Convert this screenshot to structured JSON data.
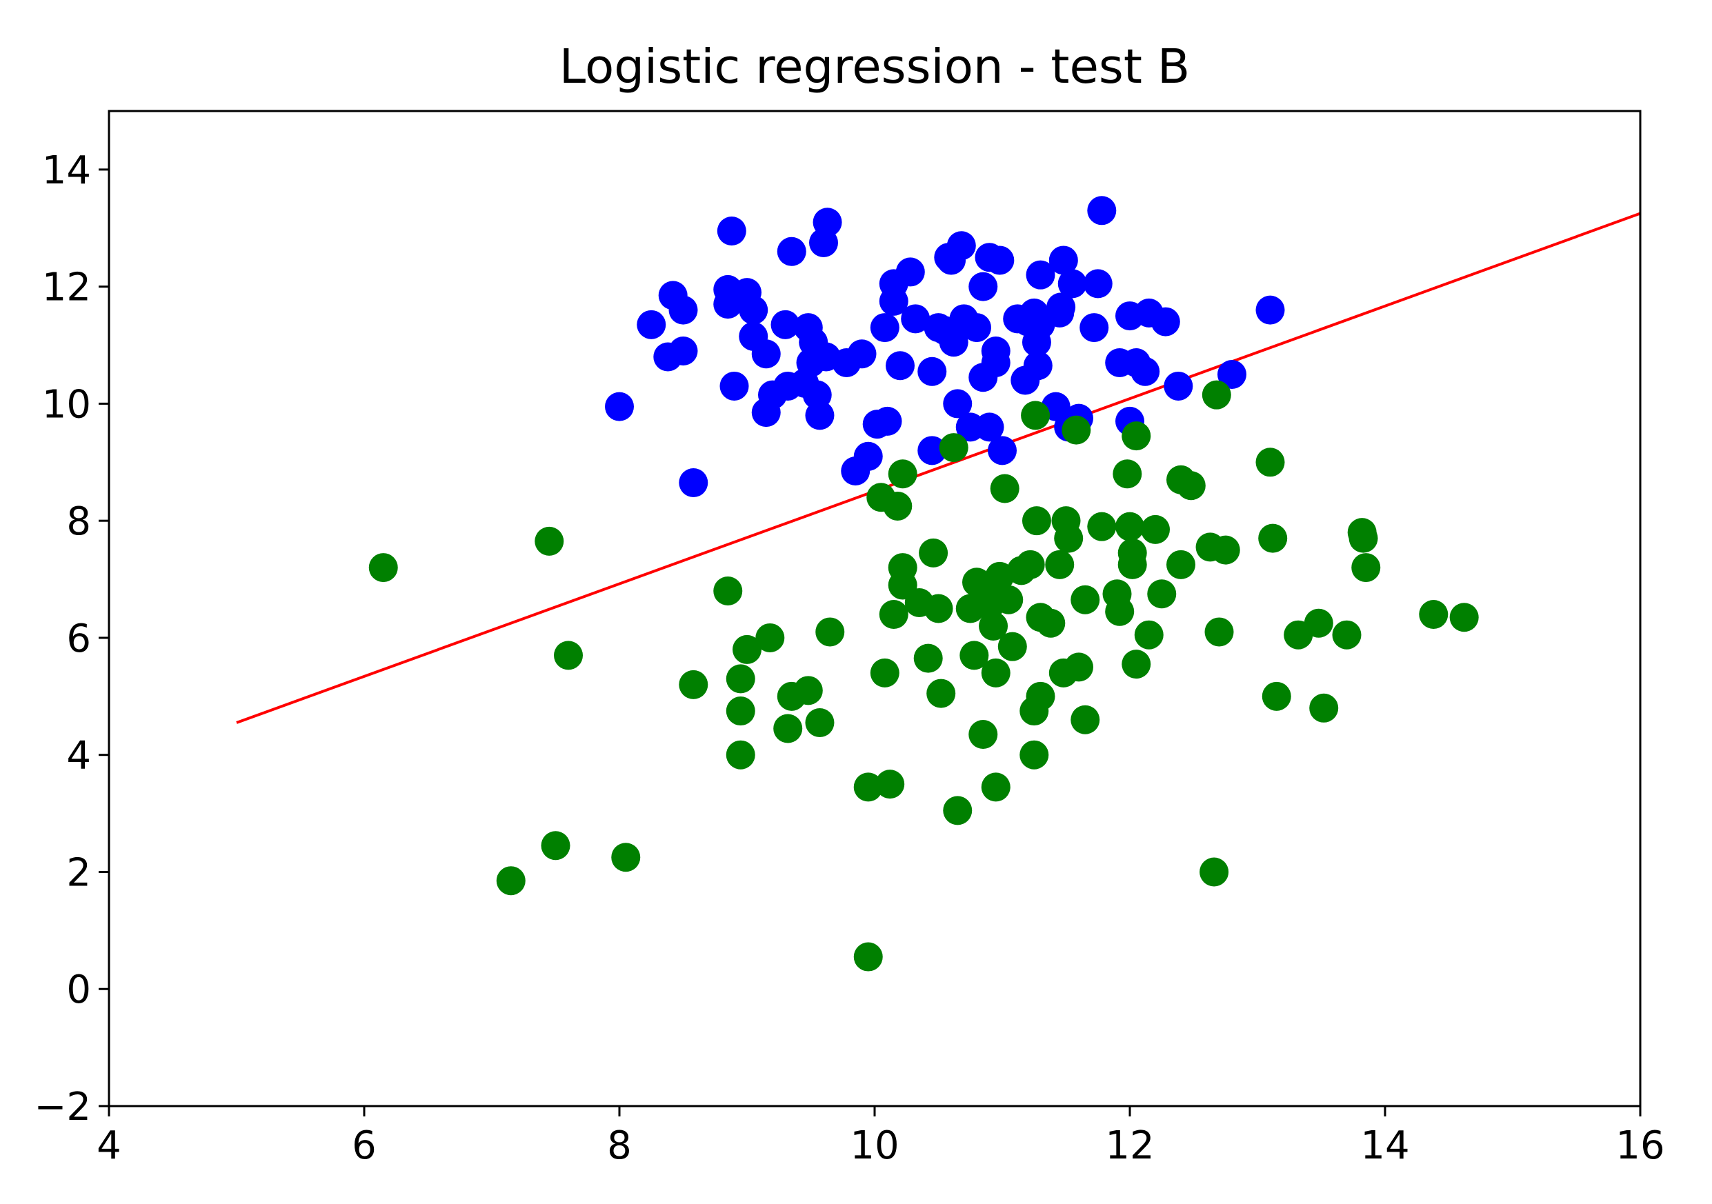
{
  "chart_data": {
    "type": "scatter",
    "title": "Logistic regression - test B",
    "xlabel": "",
    "ylabel": "",
    "xlim": [
      4,
      16
    ],
    "ylim": [
      -2,
      15
    ],
    "xticks": [
      "4",
      "6",
      "8",
      "10",
      "12",
      "14",
      "16"
    ],
    "yticks": [
      "−2",
      "0",
      "2",
      "4",
      "6",
      "8",
      "10",
      "12",
      "14"
    ],
    "grid": false,
    "legend": "none",
    "series": [
      {
        "color": "#0000ff",
        "points": [
          [
            8.0,
            9.95
          ],
          [
            8.25,
            11.35
          ],
          [
            8.38,
            10.8
          ],
          [
            8.42,
            11.85
          ],
          [
            8.5,
            10.9
          ],
          [
            8.5,
            11.6
          ],
          [
            8.58,
            8.65
          ],
          [
            8.85,
            11.7
          ],
          [
            8.85,
            11.95
          ],
          [
            8.88,
            12.95
          ],
          [
            8.9,
            10.3
          ],
          [
            9.0,
            11.9
          ],
          [
            9.05,
            11.6
          ],
          [
            9.05,
            11.15
          ],
          [
            9.15,
            10.85
          ],
          [
            9.15,
            9.85
          ],
          [
            9.2,
            10.15
          ],
          [
            9.3,
            11.35
          ],
          [
            9.32,
            10.3
          ],
          [
            9.35,
            12.6
          ],
          [
            9.45,
            10.35
          ],
          [
            9.48,
            11.3
          ],
          [
            9.5,
            10.7
          ],
          [
            9.52,
            11.05
          ],
          [
            9.55,
            10.15
          ],
          [
            9.57,
            9.8
          ],
          [
            9.6,
            12.75
          ],
          [
            9.62,
            10.8
          ],
          [
            9.63,
            13.1
          ],
          [
            9.78,
            10.7
          ],
          [
            9.9,
            10.85
          ],
          [
            9.85,
            8.85
          ],
          [
            9.95,
            9.1
          ],
          [
            10.02,
            9.65
          ],
          [
            10.1,
            9.7
          ],
          [
            10.08,
            11.3
          ],
          [
            10.15,
            12.05
          ],
          [
            10.15,
            11.75
          ],
          [
            10.2,
            10.65
          ],
          [
            10.28,
            12.25
          ],
          [
            10.32,
            11.45
          ],
          [
            10.45,
            10.55
          ],
          [
            10.45,
            9.2
          ],
          [
            10.5,
            11.3
          ],
          [
            10.55,
            11.25
          ],
          [
            10.58,
            12.5
          ],
          [
            10.6,
            12.45
          ],
          [
            10.62,
            11.05
          ],
          [
            10.65,
            10.0
          ],
          [
            10.68,
            12.7
          ],
          [
            10.7,
            11.45
          ],
          [
            10.75,
            9.6
          ],
          [
            10.8,
            11.3
          ],
          [
            10.85,
            12.0
          ],
          [
            10.85,
            10.45
          ],
          [
            10.9,
            12.5
          ],
          [
            10.9,
            9.6
          ],
          [
            10.95,
            10.9
          ],
          [
            10.95,
            10.7
          ],
          [
            10.98,
            12.45
          ],
          [
            11.0,
            9.2
          ],
          [
            11.12,
            11.45
          ],
          [
            11.18,
            10.4
          ],
          [
            11.2,
            11.4
          ],
          [
            11.25,
            11.55
          ],
          [
            11.27,
            11.05
          ],
          [
            11.28,
            10.65
          ],
          [
            11.3,
            12.2
          ],
          [
            11.3,
            11.35
          ],
          [
            11.42,
            9.95
          ],
          [
            11.45,
            11.55
          ],
          [
            11.46,
            11.65
          ],
          [
            11.48,
            12.45
          ],
          [
            11.52,
            9.6
          ],
          [
            11.55,
            12.05
          ],
          [
            11.6,
            9.75
          ],
          [
            11.72,
            11.3
          ],
          [
            11.78,
            13.3
          ],
          [
            11.75,
            12.05
          ],
          [
            11.92,
            10.7
          ],
          [
            12.0,
            11.5
          ],
          [
            12.0,
            9.7
          ],
          [
            12.05,
            10.7
          ],
          [
            12.12,
            10.55
          ],
          [
            12.15,
            11.55
          ],
          [
            12.28,
            11.4
          ],
          [
            12.38,
            10.3
          ],
          [
            12.8,
            10.5
          ],
          [
            13.1,
            11.6
          ]
        ]
      },
      {
        "color": "#008000",
        "points": [
          [
            6.15,
            7.2
          ],
          [
            7.15,
            1.85
          ],
          [
            7.45,
            7.65
          ],
          [
            7.5,
            2.45
          ],
          [
            7.6,
            5.7
          ],
          [
            8.05,
            2.25
          ],
          [
            8.58,
            5.2
          ],
          [
            8.85,
            6.8
          ],
          [
            8.95,
            5.3
          ],
          [
            8.95,
            4.75
          ],
          [
            8.95,
            4.0
          ],
          [
            9.0,
            5.8
          ],
          [
            9.18,
            6.0
          ],
          [
            9.32,
            4.45
          ],
          [
            9.35,
            5.0
          ],
          [
            9.48,
            5.1
          ],
          [
            9.57,
            4.55
          ],
          [
            9.65,
            6.1
          ],
          [
            9.95,
            3.45
          ],
          [
            9.95,
            0.55
          ],
          [
            10.05,
            8.4
          ],
          [
            10.08,
            5.4
          ],
          [
            10.12,
            3.5
          ],
          [
            10.15,
            6.4
          ],
          [
            10.18,
            8.25
          ],
          [
            10.22,
            8.8
          ],
          [
            10.22,
            7.2
          ],
          [
            10.22,
            6.9
          ],
          [
            10.35,
            6.6
          ],
          [
            10.42,
            5.65
          ],
          [
            10.46,
            7.45
          ],
          [
            10.5,
            6.5
          ],
          [
            10.52,
            5.05
          ],
          [
            10.62,
            9.25
          ],
          [
            10.65,
            3.05
          ],
          [
            10.75,
            6.5
          ],
          [
            10.78,
            5.7
          ],
          [
            10.8,
            6.95
          ],
          [
            10.85,
            4.35
          ],
          [
            10.88,
            6.7
          ],
          [
            10.9,
            6.55
          ],
          [
            10.93,
            6.2
          ],
          [
            10.95,
            5.4
          ],
          [
            10.95,
            3.45
          ],
          [
            10.98,
            7.05
          ],
          [
            11.02,
            8.55
          ],
          [
            11.05,
            6.65
          ],
          [
            11.08,
            5.85
          ],
          [
            11.15,
            7.15
          ],
          [
            11.22,
            7.25
          ],
          [
            11.25,
            4.75
          ],
          [
            11.25,
            4.0
          ],
          [
            11.26,
            9.8
          ],
          [
            11.27,
            8.0
          ],
          [
            11.3,
            6.35
          ],
          [
            11.3,
            5.0
          ],
          [
            11.38,
            6.25
          ],
          [
            11.45,
            7.25
          ],
          [
            11.48,
            5.4
          ],
          [
            11.5,
            8.0
          ],
          [
            11.52,
            7.7
          ],
          [
            11.58,
            9.55
          ],
          [
            11.6,
            5.5
          ],
          [
            11.65,
            6.65
          ],
          [
            11.65,
            4.6
          ],
          [
            11.78,
            7.9
          ],
          [
            11.9,
            6.75
          ],
          [
            11.92,
            6.45
          ],
          [
            11.98,
            8.8
          ],
          [
            12.0,
            7.9
          ],
          [
            12.02,
            7.45
          ],
          [
            12.02,
            7.25
          ],
          [
            12.05,
            9.45
          ],
          [
            12.05,
            5.55
          ],
          [
            12.15,
            6.05
          ],
          [
            12.2,
            7.85
          ],
          [
            12.25,
            6.75
          ],
          [
            12.4,
            8.7
          ],
          [
            12.4,
            7.25
          ],
          [
            12.48,
            8.6
          ],
          [
            12.63,
            7.55
          ],
          [
            12.68,
            10.15
          ],
          [
            12.7,
            6.1
          ],
          [
            12.66,
            2.0
          ],
          [
            12.75,
            7.5
          ],
          [
            13.1,
            9.0
          ],
          [
            13.12,
            7.7
          ],
          [
            13.15,
            5.0
          ],
          [
            13.32,
            6.05
          ],
          [
            13.48,
            6.25
          ],
          [
            13.52,
            4.8
          ],
          [
            13.7,
            6.05
          ],
          [
            13.82,
            7.8
          ],
          [
            13.83,
            7.7
          ],
          [
            13.85,
            7.2
          ],
          [
            14.38,
            6.4
          ],
          [
            14.62,
            6.35
          ]
        ]
      }
    ],
    "decision_line": {
      "color": "#ff0000",
      "x": [
        5.0,
        16.0
      ],
      "y": [
        4.55,
        13.25
      ]
    }
  }
}
